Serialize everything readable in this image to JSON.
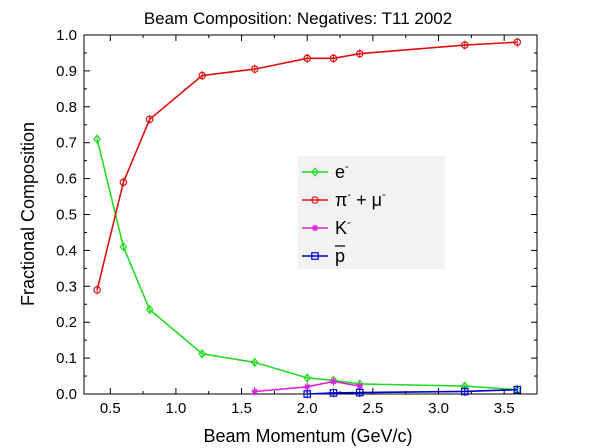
{
  "chart_data": {
    "type": "line",
    "title": "Beam Composition: Negatives: T11 2002",
    "xlabel": "Beam Momentum (GeV/c)",
    "ylabel": "Fractional Composition",
    "xlim": [
      0.3,
      3.75
    ],
    "ylim": [
      0.0,
      1.0
    ],
    "x_ticks": [
      0.5,
      1.0,
      1.5,
      2.0,
      2.5,
      3.0,
      3.5
    ],
    "x_tick_labels": [
      "0.5",
      "1.0",
      "1.5",
      "2.0",
      "2.5",
      "3.0",
      "3.5"
    ],
    "y_ticks": [
      0.0,
      0.1,
      0.2,
      0.3,
      0.4,
      0.5,
      0.6,
      0.7,
      0.8,
      0.9,
      1.0
    ],
    "y_tick_labels": [
      "0.0",
      "0.1",
      "0.2",
      "0.3",
      "0.4",
      "0.5",
      "0.6",
      "0.7",
      "0.8",
      "0.9",
      "1.0"
    ],
    "grid": false,
    "legend_position": "center-right",
    "series": [
      {
        "name": "e⁻",
        "legend_base": "e",
        "legend_sup": "-",
        "legend_tail": "",
        "color": "#22dd22",
        "marker": "diamond",
        "points": [
          [
            0.4,
            0.71
          ],
          [
            0.6,
            0.41
          ],
          [
            0.8,
            0.235
          ],
          [
            1.2,
            0.112
          ],
          [
            1.6,
            0.088
          ],
          [
            2.0,
            0.045
          ],
          [
            2.2,
            0.038
          ],
          [
            2.4,
            0.028
          ],
          [
            3.2,
            0.022
          ],
          [
            3.6,
            0.012
          ]
        ]
      },
      {
        "name": "π⁻ + μ⁻",
        "legend_base": "π",
        "legend_sup": "-",
        "legend_tail": " + μ",
        "legend_sup2": "-",
        "color": "#dd1111",
        "marker": "circle",
        "points": [
          [
            0.4,
            0.29
          ],
          [
            0.6,
            0.59
          ],
          [
            0.8,
            0.765
          ],
          [
            1.2,
            0.887
          ],
          [
            1.6,
            0.905
          ],
          [
            2.0,
            0.935
          ],
          [
            2.2,
            0.935
          ],
          [
            2.4,
            0.948
          ],
          [
            3.2,
            0.972
          ],
          [
            3.6,
            0.98
          ]
        ]
      },
      {
        "name": "K⁻",
        "legend_base": "K",
        "legend_sup": "-",
        "legend_tail": "",
        "color": "#dd22dd",
        "marker": "star",
        "points": [
          [
            1.6,
            0.007
          ],
          [
            2.0,
            0.02
          ],
          [
            2.2,
            0.035
          ],
          [
            2.4,
            0.022
          ]
        ]
      },
      {
        "name": "p̄",
        "legend_base": "p",
        "legend_overline": true,
        "legend_sup": "",
        "legend_tail": "",
        "color": "#0000cc",
        "marker": "square",
        "points": [
          [
            2.0,
            0.0
          ],
          [
            2.2,
            0.003
          ],
          [
            2.4,
            0.004
          ],
          [
            3.2,
            0.007
          ],
          [
            3.6,
            0.012
          ]
        ]
      }
    ]
  }
}
